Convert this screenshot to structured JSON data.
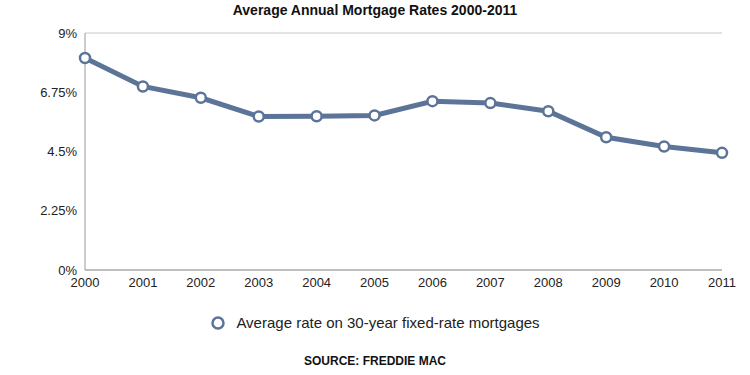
{
  "chart_data": {
    "type": "line",
    "title": "Average Annual Mortgage Rates 2000-2011",
    "source": "SOURCE: FREDDIE MAC",
    "categories": [
      "2000",
      "2001",
      "2002",
      "2003",
      "2004",
      "2005",
      "2006",
      "2007",
      "2008",
      "2009",
      "2010",
      "2011"
    ],
    "series": [
      {
        "name": "Average rate on 30-year fixed-rate mortgages",
        "color": "#5b7497",
        "marker": "circle",
        "values": [
          8.05,
          6.97,
          6.54,
          5.83,
          5.84,
          5.87,
          6.41,
          6.34,
          6.03,
          5.04,
          4.69,
          4.45
        ]
      }
    ],
    "ylim": [
      0,
      9
    ],
    "yticks": [
      {
        "value": 0,
        "label": "0%"
      },
      {
        "value": 2.25,
        "label": "2.25%"
      },
      {
        "value": 4.5,
        "label": "4.5%"
      },
      {
        "value": 6.75,
        "label": "6.75%"
      },
      {
        "value": 9,
        "label": "9%"
      }
    ],
    "grid": true,
    "legend": "bottom"
  }
}
